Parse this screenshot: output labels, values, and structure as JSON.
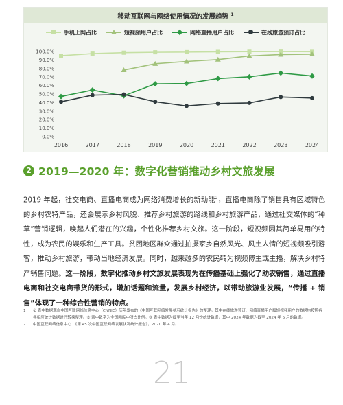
{
  "chart_data": {
    "type": "line",
    "title": "移动互联网与网络使用情况的发展趋势",
    "title_note": "1",
    "categories": [
      "2016",
      "2017",
      "2018",
      "2019",
      "2020",
      "2021",
      "2022",
      "2023",
      "2024"
    ],
    "ylim": [
      0,
      100
    ],
    "ytick_labels": [
      "0.0%",
      "10.0%",
      "20.0%",
      "30.0%",
      "40.0%",
      "50.0%",
      "60.0%",
      "70.0%",
      "80.0%",
      "90.0%",
      "100.0%"
    ],
    "grid": false,
    "legend_position": "top",
    "series": [
      {
        "name": "手机上网占比",
        "color": "#c6e0a4",
        "marker": "square",
        "values": [
          95.1,
          97.5,
          98.6,
          99.1,
          99.3,
          99.6,
          99.8,
          99.9,
          99.7
        ]
      },
      {
        "name": "短视频用户占比",
        "color": "#a2c27b",
        "marker": "triangle",
        "values": [
          null,
          null,
          78.2,
          85.6,
          88.3,
          90.5,
          94.8,
          96.4,
          96.8
        ]
      },
      {
        "name": "网络直播用户占比",
        "color": "#2e9a45",
        "marker": "diamond",
        "values": [
          47.1,
          54.7,
          47.9,
          62.0,
          62.4,
          68.2,
          70.3,
          74.7,
          71.2
        ]
      },
      {
        "name": "在线旅游预订占比",
        "color": "#2f3a3e",
        "marker": "circle",
        "values": [
          40.9,
          48.7,
          49.5,
          41.0,
          36.0,
          38.9,
          39.6,
          46.5,
          45.3
        ]
      }
    ]
  },
  "section": {
    "number": "2",
    "title": "2019—2020 年：数字化营销推动乡村文旅发展"
  },
  "body": {
    "part1": "2019 年起，社交电商、直播电商成为网络消费增长的新动能",
    "sup1": "2",
    "part2": "，直播电商除了销售具有区域特色的乡村农特产品，还会展示乡村风貌、推荐乡村旅游的路线和乡村旅游产品，通过社交媒体的“种草”营销逻辑，唤起人们潜在的兴趣，个性化推荐乡村文旅。这一阶段，短视频因其简单易用的特性，成为农民的娱乐和生产工具。贫困地区群众通过拍摄家乡自然风光、风土人情的短视频吸引游客，推动乡村旅游，带动当地经济发展。同时，越来越多的农民转为视频博主或主播，解决乡村特产销售问题。",
    "bold": "这一阶段，数字化推动乡村文旅发展表现为在传播基础上强化了助农销售，通过直播电商和社交电商带货的形式，增加话题和流量，发展乡村经济，以带动旅游业发展，“传播 + 销售”体现了一种综合性营销的特点。"
  },
  "footnotes": [
    {
      "num": "1",
      "text": "① 表中数据源自中国互联网络信息中心（CNNIC）历年发布的《中国互联网络发展状况统计报告》的整理。其中在线旅游预订、网络直播用户和短视频用户的数据均按照各年相应统计数据进行转换整理。② 表中数字为全国网民中所占比例。③ 表中数据为截至当年 12 月份统计数据，其中 2024 年数据为截至 2024 年 6 月的数据。"
    },
    {
      "num": "2",
      "text": "中国互联网络信息中心：《第 45 次中国互联网络发展状况统计报告》，2020 年 4 月。"
    }
  ],
  "page_number": "21"
}
